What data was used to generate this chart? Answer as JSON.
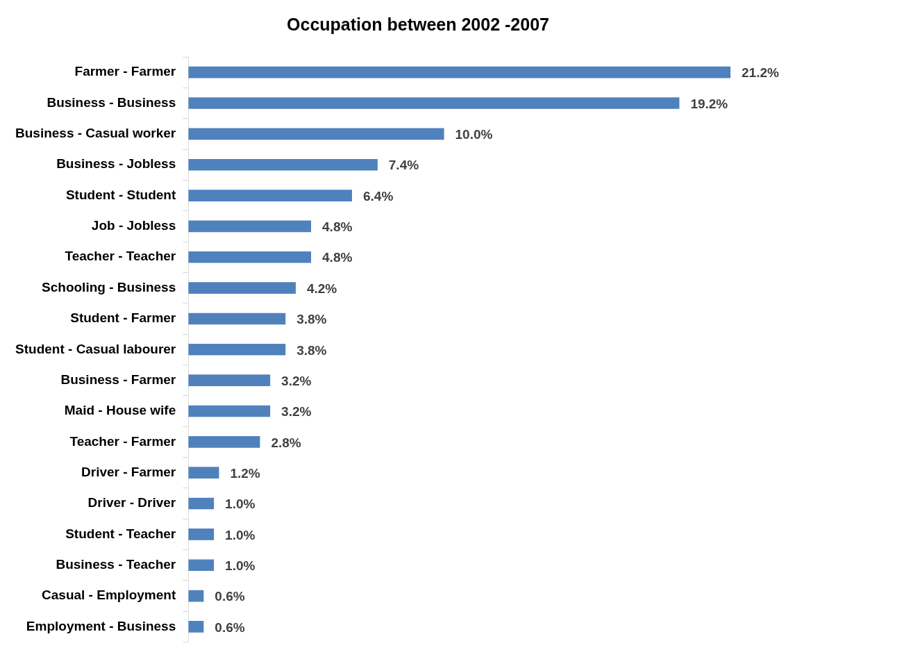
{
  "chart_data": {
    "type": "bar",
    "orientation": "horizontal",
    "title": "Occupation between 2002 -2007",
    "categories": [
      "Farmer - Farmer",
      "Business - Business",
      "Business - Casual worker",
      "Business - Jobless",
      "Student - Student",
      "Job - Jobless",
      "Teacher - Teacher",
      "Schooling - Business",
      "Student - Farmer",
      "Student - Casual labourer",
      "Business - Farmer",
      "Maid - House wife",
      "Teacher - Farmer",
      "Driver - Farmer",
      "Driver - Driver",
      "Student - Teacher",
      "Business - Teacher",
      "Casual - Employment",
      "Employment - Business"
    ],
    "values": [
      21.2,
      19.2,
      10.0,
      7.4,
      6.4,
      4.8,
      4.8,
      4.2,
      3.8,
      3.8,
      3.2,
      3.2,
      2.8,
      1.2,
      1.0,
      1.0,
      1.0,
      0.6,
      0.6
    ],
    "value_labels": [
      "21.2%",
      "19.2%",
      "10.0%",
      "7.4%",
      "6.4%",
      "4.8%",
      "4.8%",
      "4.2%",
      "3.8%",
      "3.8%",
      "3.2%",
      "3.2%",
      "2.8%",
      "1.2%",
      "1.0%",
      "1.0%",
      "1.0%",
      "0.6%",
      "0.6%"
    ],
    "color": "#4f81bd",
    "legend": false
  }
}
